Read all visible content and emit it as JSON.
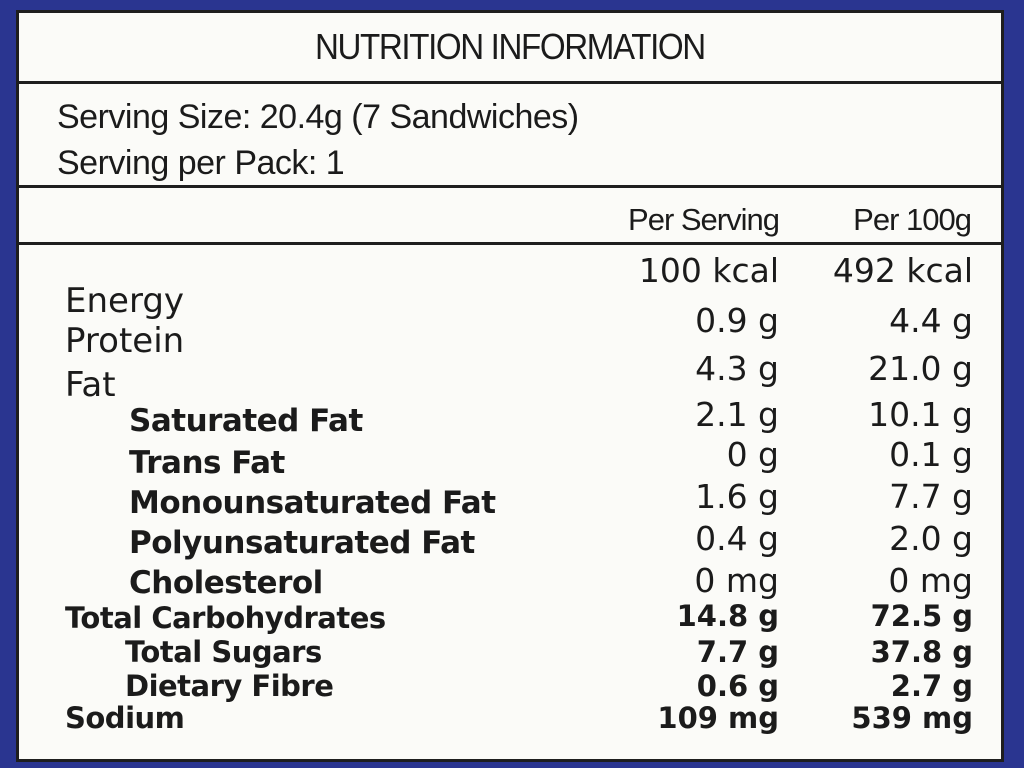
{
  "title": "NUTRITION INFORMATION",
  "serving_size": "Serving Size: 20.4g (7 Sandwiches)",
  "serving_per_pack": "Serving per Pack: 1",
  "columns": {
    "per_serving": "Per Serving",
    "per_100g": "Per 100g"
  },
  "nutrients": [
    {
      "name": "Energy",
      "per_serving": "100 kcal",
      "per_100g": "492 kcal"
    },
    {
      "name": "Protein",
      "per_serving": "0.9 g",
      "per_100g": "4.4 g"
    },
    {
      "name": "Fat",
      "per_serving": "4.3 g",
      "per_100g": "21.0 g"
    },
    {
      "name": "Saturated Fat",
      "per_serving": "2.1 g",
      "per_100g": "10.1 g"
    },
    {
      "name": "Trans Fat",
      "per_serving": "0 g",
      "per_100g": "0.1 g"
    },
    {
      "name": "Monounsaturated Fat",
      "per_serving": "1.6 g",
      "per_100g": "7.7 g"
    },
    {
      "name": "Polyunsaturated Fat",
      "per_serving": "0.4 g",
      "per_100g": "2.0 g"
    },
    {
      "name": "Cholesterol",
      "per_serving": "0 mg",
      "per_100g": "0 mg"
    },
    {
      "name": "Total Carbohydrates",
      "per_serving": "14.8 g",
      "per_100g": "72.5 g"
    },
    {
      "name": "Total Sugars",
      "per_serving": "7.7 g",
      "per_100g": "37.8 g"
    },
    {
      "name": "Dietary Fibre",
      "per_serving": "0.6 g",
      "per_100g": "2.7 g"
    },
    {
      "name": "Sodium",
      "per_serving": "109 mg",
      "per_100g": "539 mg"
    }
  ]
}
